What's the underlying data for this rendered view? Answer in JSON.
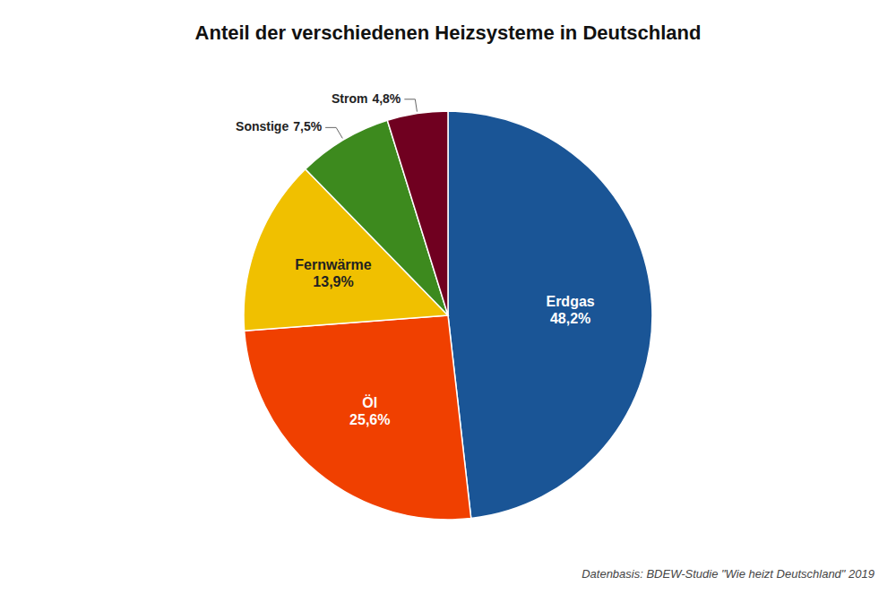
{
  "chart_data": {
    "type": "pie",
    "title": "Anteil der verschiedenen Heizsysteme in Deutschland",
    "categories": [
      "Erdgas",
      "Öl",
      "Fernwärme",
      "Sonstige",
      "Strom"
    ],
    "values": [
      48.2,
      25.6,
      13.9,
      7.5,
      4.8
    ],
    "value_labels": [
      "48,2%",
      "25,6%",
      "13,9%",
      "7,5%",
      "4,8%"
    ],
    "colors": [
      "#1a5596",
      "#f04000",
      "#f0c000",
      "#3d8a1e",
      "#700020"
    ],
    "data_labels": true,
    "annotations": [
      "Datenbasis: BDEW-Studie \"Wie heizt Deutschland\" 2019"
    ]
  }
}
